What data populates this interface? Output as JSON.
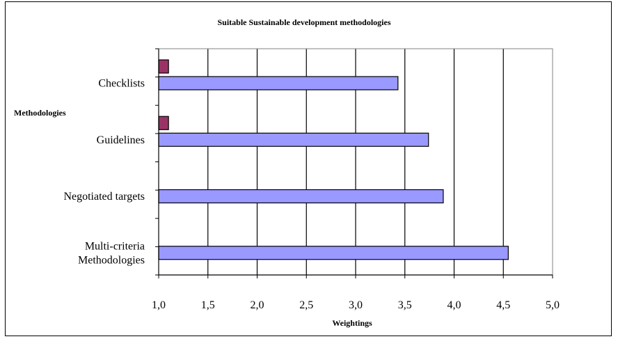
{
  "chart_data": {
    "type": "bar",
    "orientation": "horizontal",
    "title": "Suitable Sustainable development methodologies",
    "xlabel": "Weightings",
    "ylabel": "Methodologies",
    "categories": [
      [
        "Multi-criteria",
        "Methodologies"
      ],
      [
        "Negotiated targets"
      ],
      [
        "Guidelines"
      ],
      [
        "Checklists"
      ]
    ],
    "series": [
      {
        "color": "#9999ff",
        "values": [
          4.55,
          3.89,
          3.74,
          3.43
        ]
      },
      {
        "color": "#993366",
        "values": [
          null,
          null,
          1.1,
          1.1
        ]
      }
    ],
    "xlim": [
      1.0,
      5.0
    ],
    "xticks": [
      "1,0",
      "1,5",
      "2,0",
      "2,5",
      "3,0",
      "3,5",
      "4,0",
      "4,5",
      "5,0"
    ],
    "grid": true,
    "legend": "none"
  }
}
